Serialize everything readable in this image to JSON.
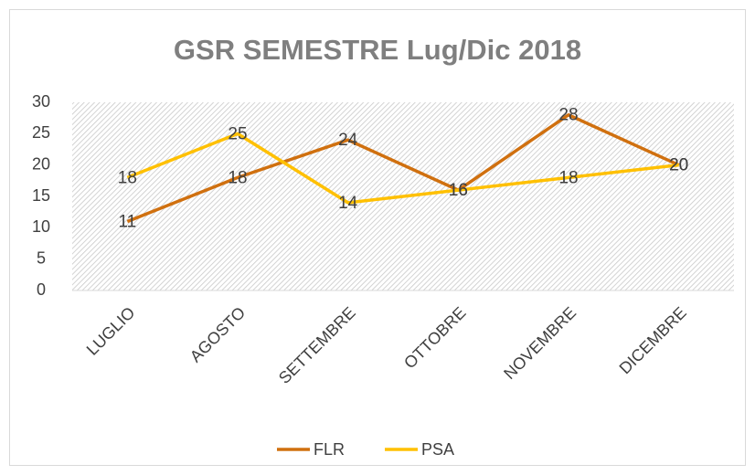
{
  "chart_data": {
    "type": "line",
    "title": "GSR SEMESTRE Lug/Dic 2018",
    "categories": [
      "LUGLIO",
      "AGOSTO",
      "SETTEMBRE",
      "OTTOBRE",
      "NOVEMBRE",
      "DICEMBRE"
    ],
    "series": [
      {
        "name": "FLR",
        "color": "#d0700f",
        "values": [
          11,
          18,
          24,
          16,
          28,
          20
        ]
      },
      {
        "name": "PSA",
        "color": "#ffc000",
        "values": [
          18,
          25,
          14,
          16,
          18,
          20
        ]
      }
    ],
    "ylim": [
      0,
      30
    ],
    "yticks": [
      0,
      5,
      10,
      15,
      20,
      25,
      30
    ],
    "legend": "bottom"
  }
}
